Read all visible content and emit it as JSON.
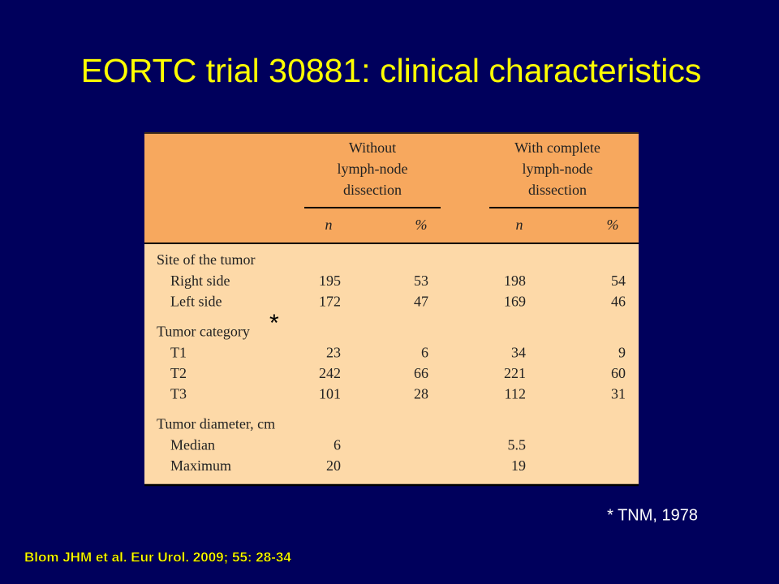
{
  "title": "EORTC trial 30881: clinical characteristics",
  "table": {
    "column_groups": [
      [
        "Without",
        "lymph-node",
        "dissection"
      ],
      [
        "With complete",
        "lymph-node",
        "dissection"
      ]
    ],
    "subheaders": [
      "n",
      "%",
      "n",
      "%"
    ],
    "sections": [
      {
        "label": "Site of the tumor",
        "rows": [
          {
            "label": "Right side",
            "cells": [
              195,
              53,
              198,
              54
            ]
          },
          {
            "label": "Left side",
            "cells": [
              172,
              47,
              169,
              46
            ]
          }
        ]
      },
      {
        "label": "Tumor category",
        "rows": [
          {
            "label": "T1",
            "cells": [
              23,
              6,
              34,
              9
            ]
          },
          {
            "label": "T2",
            "cells": [
              242,
              66,
              221,
              60
            ]
          },
          {
            "label": "T3",
            "cells": [
              101,
              28,
              112,
              31
            ]
          }
        ]
      },
      {
        "label": "Tumor diameter, cm",
        "rows": [
          {
            "label": "Median",
            "cells": [
              6,
              null,
              5.5,
              null
            ]
          },
          {
            "label": "Maximum",
            "cells": [
              20,
              null,
              19,
              null
            ]
          }
        ]
      }
    ]
  },
  "asterisk": "*",
  "footnote": "* TNM, 1978",
  "citation": "Blom JHM et al. Eur Urol. 2009; 55: 28-34"
}
